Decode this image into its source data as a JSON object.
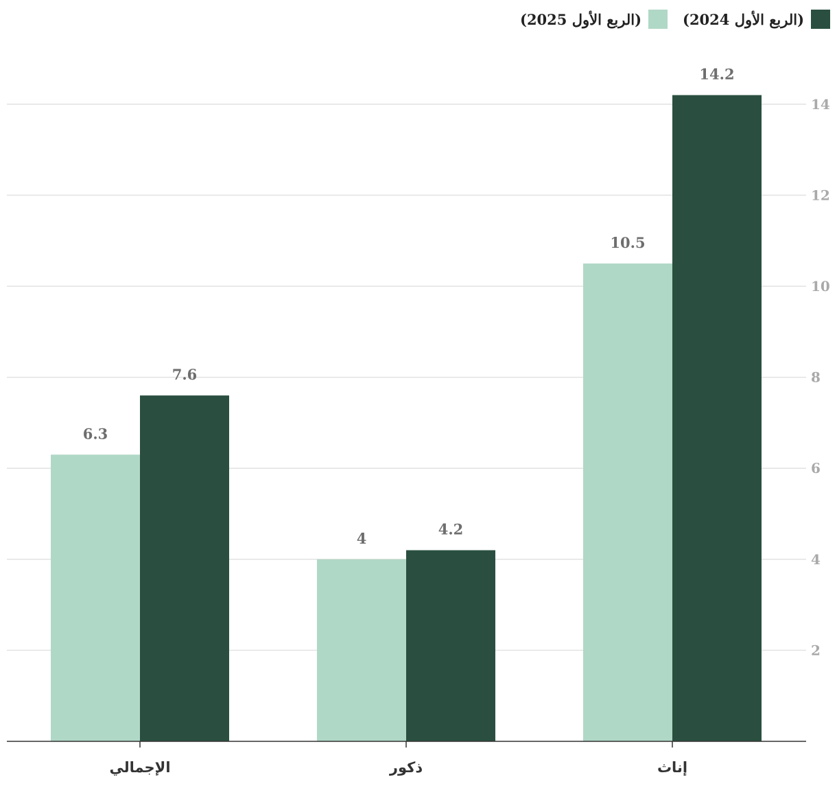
{
  "chart_data": {
    "type": "bar",
    "categories": [
      "الإجمالي",
      "ذكور",
      "إناث"
    ],
    "series": [
      {
        "name": "(الربع الأول 2025)",
        "values": [
          6.3,
          4,
          10.5
        ],
        "color": "#b0d8c6"
      },
      {
        "name": "(الربع الأول 2024)",
        "values": [
          7.6,
          4.2,
          14.2
        ],
        "color": "#2a4f40"
      }
    ],
    "y_ticks": [
      2,
      4,
      6,
      8,
      10,
      12,
      14
    ],
    "ylim": [
      0,
      15
    ],
    "y_axis_side": "right",
    "grid": true,
    "legend_position": "top-right",
    "title": "",
    "xlabel": "",
    "ylabel": ""
  }
}
